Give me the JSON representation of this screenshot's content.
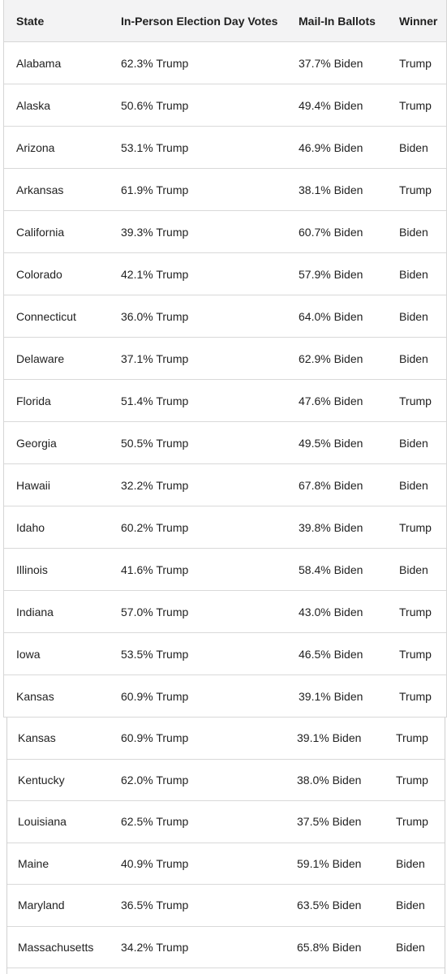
{
  "table1": {
    "headers": [
      "State",
      "In-Person Election Day Votes",
      "Mail-In Ballots",
      "Winner"
    ],
    "rows": [
      [
        "Alabama",
        "62.3% Trump",
        "37.7% Biden",
        "Trump"
      ],
      [
        "Alaska",
        "50.6% Trump",
        "49.4% Biden",
        "Trump"
      ],
      [
        "Arizona",
        "53.1% Trump",
        "46.9% Biden",
        "Biden"
      ],
      [
        "Arkansas",
        "61.9% Trump",
        "38.1% Biden",
        "Trump"
      ],
      [
        "California",
        "39.3% Trump",
        "60.7% Biden",
        "Biden"
      ],
      [
        "Colorado",
        "42.1% Trump",
        "57.9% Biden",
        "Biden"
      ],
      [
        "Connecticut",
        "36.0% Trump",
        "64.0% Biden",
        "Biden"
      ],
      [
        "Delaware",
        "37.1% Trump",
        "62.9% Biden",
        "Biden"
      ],
      [
        "Florida",
        "51.4% Trump",
        "47.6% Biden",
        "Trump"
      ],
      [
        "Georgia",
        "50.5% Trump",
        "49.5% Biden",
        "Biden"
      ],
      [
        "Hawaii",
        "32.2% Trump",
        "67.8% Biden",
        "Biden"
      ],
      [
        "Idaho",
        "60.2% Trump",
        "39.8% Biden",
        "Trump"
      ],
      [
        "Illinois",
        "41.6% Trump",
        "58.4% Biden",
        "Biden"
      ],
      [
        "Indiana",
        "57.0% Trump",
        "43.0% Biden",
        "Trump"
      ],
      [
        "Iowa",
        "53.5% Trump",
        "46.5% Biden",
        "Trump"
      ],
      [
        "Kansas",
        "60.9% Trump",
        "39.1% Biden",
        "Trump"
      ]
    ]
  },
  "table2": {
    "rows": [
      [
        "Kansas",
        "60.9% Trump",
        "39.1% Biden",
        "Trump"
      ],
      [
        "Kentucky",
        "62.0% Trump",
        "38.0% Biden",
        "Trump"
      ],
      [
        "Louisiana",
        "62.5% Trump",
        "37.5% Biden",
        "Trump"
      ],
      [
        "Maine",
        "40.9% Trump",
        "59.1% Biden",
        "Biden"
      ],
      [
        "Maryland",
        "36.5% Trump",
        "63.5% Biden",
        "Biden"
      ],
      [
        "Massachusetts",
        "34.2% Trump",
        "65.8% Biden",
        "Biden"
      ]
    ]
  }
}
